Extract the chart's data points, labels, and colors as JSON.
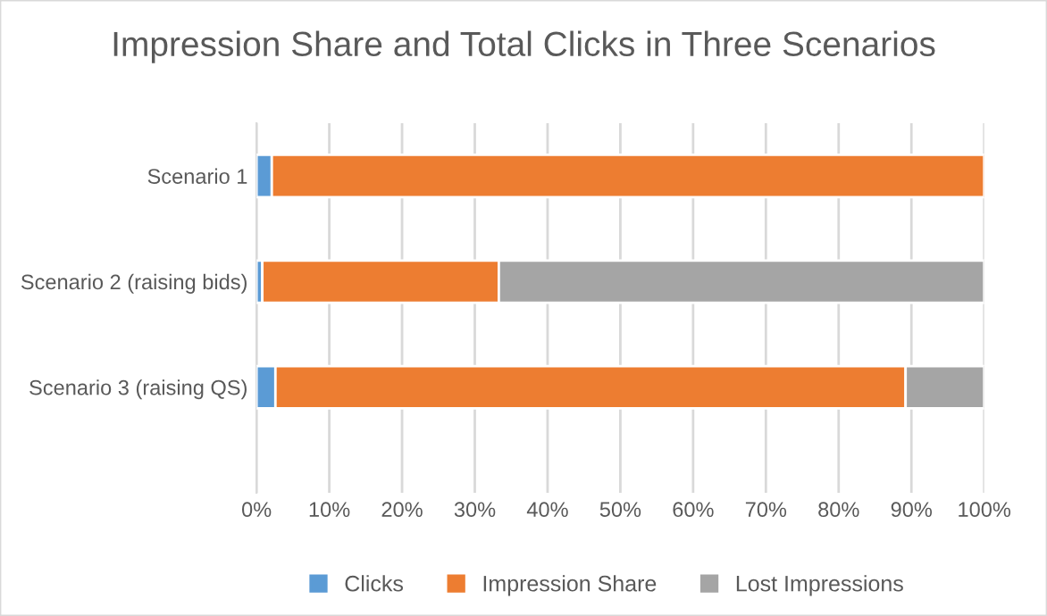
{
  "chart_data": {
    "type": "bar",
    "orientation": "horizontal",
    "stacked": true,
    "title": "Impression Share and Total Clicks in Three Scenarios",
    "categories": [
      "Scenario 1",
      "Scenario 2 (raising bids)",
      "Scenario 3 (raising QS)"
    ],
    "series": [
      {
        "name": "Clicks",
        "color": "#5b9bd5",
        "values": [
          2.1,
          0.8,
          2.6
        ]
      },
      {
        "name": "Impression Share",
        "color": "#ed7d31",
        "values": [
          97.9,
          32.5,
          86.6
        ]
      },
      {
        "name": "Lost Impressions",
        "color": "#a5a5a5",
        "values": [
          null,
          66.7,
          10.8
        ]
      }
    ],
    "xlim": [
      0,
      100
    ],
    "xticks": [
      {
        "value": 0,
        "label": "0%"
      },
      {
        "value": 10,
        "label": "10%"
      },
      {
        "value": 20,
        "label": "20%"
      },
      {
        "value": 30,
        "label": "30%"
      },
      {
        "value": 40,
        "label": "40%"
      },
      {
        "value": 50,
        "label": "50%"
      },
      {
        "value": 60,
        "label": "60%"
      },
      {
        "value": 70,
        "label": "70%"
      },
      {
        "value": 80,
        "label": "80%"
      },
      {
        "value": 90,
        "label": "90%"
      },
      {
        "value": 100,
        "label": "100%"
      }
    ],
    "grid": "x",
    "legend": "bottom"
  }
}
